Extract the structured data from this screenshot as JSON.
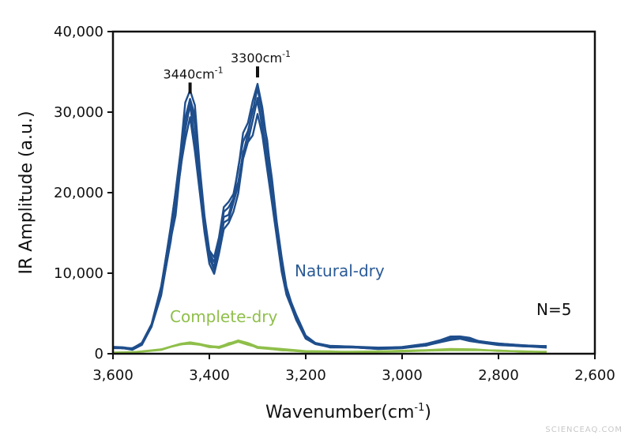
{
  "chart_data": {
    "type": "line",
    "xlabel_main": "Wavenumber(cm",
    "xlabel_sup": "-1",
    "xlabel_close": ")",
    "ylabel": "IR Amplitude (a.u.)",
    "xlim": [
      3600,
      2600
    ],
    "ylim": [
      0,
      40000
    ],
    "x_ticks": [
      3600,
      3400,
      3200,
      3000,
      2800,
      2600
    ],
    "x_tick_labels": [
      "3,600",
      "3,400",
      "3,200",
      "3,000",
      "2,800",
      "2,600"
    ],
    "y_ticks": [
      0,
      10000,
      20000,
      30000,
      40000
    ],
    "y_tick_labels": [
      "0",
      "10,000",
      "20,000",
      "30,000",
      "40,000"
    ],
    "annotations": [
      {
        "x": 3440,
        "y": 32500,
        "text": "3440cm",
        "sup": "-1"
      },
      {
        "x": 3300,
        "y": 34500,
        "text": "3300cm",
        "sup": "-1"
      }
    ],
    "n_label": "N=5",
    "series": [
      {
        "name": "Natural-dry",
        "color": "#1f4e8c",
        "replicates": 5,
        "x": [
          3600,
          3580,
          3560,
          3540,
          3520,
          3500,
          3480,
          3470,
          3460,
          3450,
          3440,
          3430,
          3420,
          3410,
          3400,
          3390,
          3380,
          3370,
          3360,
          3350,
          3340,
          3330,
          3320,
          3310,
          3300,
          3290,
          3280,
          3270,
          3260,
          3250,
          3240,
          3230,
          3220,
          3200,
          3180,
          3150,
          3100,
          3050,
          3000,
          2950,
          2920,
          2900,
          2880,
          2860,
          2840,
          2800,
          2750,
          2700
        ],
        "y": [
          800,
          700,
          600,
          1200,
          3500,
          8000,
          15000,
          19000,
          24000,
          29000,
          31000,
          28000,
          22000,
          16000,
          12000,
          11000,
          13500,
          16500,
          17500,
          19000,
          22000,
          25500,
          27500,
          29500,
          32000,
          29000,
          25000,
          20000,
          15500,
          11000,
          8000,
          6000,
          4500,
          2000,
          1300,
          900,
          800,
          700,
          800,
          1100,
          1500,
          1900,
          2000,
          1800,
          1500,
          1200,
          1000,
          900
        ]
      },
      {
        "name": "Complete-dry",
        "color": "#8fbf4a",
        "replicates": 5,
        "x": [
          3600,
          3550,
          3500,
          3480,
          3460,
          3440,
          3420,
          3400,
          3380,
          3360,
          3340,
          3320,
          3300,
          3250,
          3200,
          3150,
          3100,
          3000,
          2950,
          2900,
          2850,
          2800,
          2750,
          2700
        ],
        "y": [
          100,
          200,
          500,
          900,
          1200,
          1300,
          1100,
          900,
          800,
          1200,
          1500,
          1200,
          800,
          500,
          300,
          250,
          200,
          300,
          400,
          500,
          500,
          400,
          300,
          200
        ]
      }
    ]
  },
  "labels": {
    "natural": "Natural-dry",
    "complete": "Complete-dry"
  },
  "watermark": "SCIENCEAQ.COM"
}
